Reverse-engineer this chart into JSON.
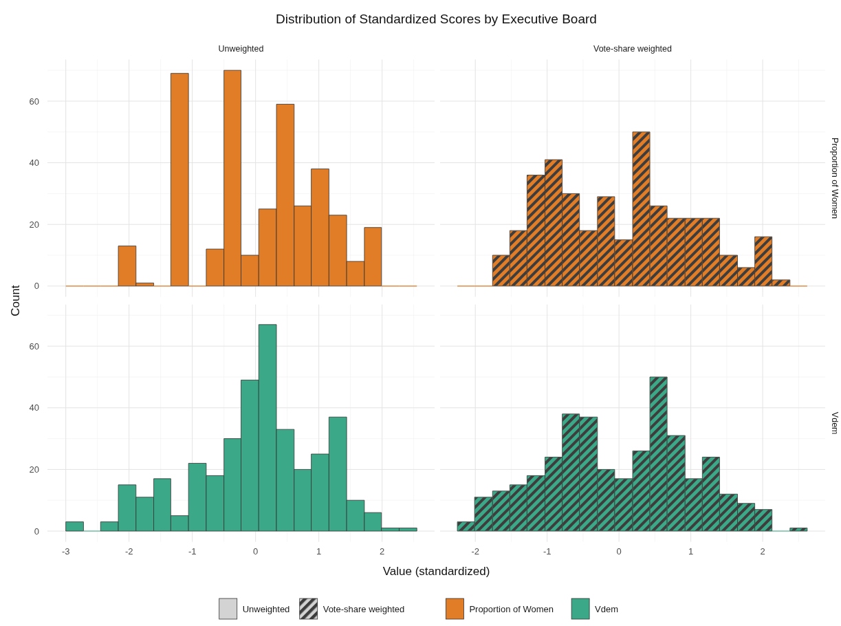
{
  "chart_data": [
    {
      "type": "histogram",
      "title": "Distribution of Standardized Scores by Executive Board",
      "subtitle": "Unweighted",
      "ylabel": "Count",
      "bins": [
        -3.0,
        -2.72,
        -2.45,
        -2.17,
        -1.89,
        -1.61,
        -1.34,
        -1.06,
        -0.78,
        -0.5,
        -0.23,
        0.05,
        0.33,
        0.61,
        0.88,
        1.16,
        1.44,
        1.72,
        1.99,
        2.27,
        2.55
      ],
      "series": [
        {
          "name": "Proportion of Women",
          "color": "#e17c27",
          "values": [
            0,
            0,
            0,
            13,
            1,
            0,
            69,
            0,
            12,
            70,
            10,
            25,
            59,
            26,
            38,
            23,
            8,
            19,
            0,
            0
          ]
        }
      ],
      "xlim": [
        -3.29,
        2.83
      ],
      "xticks": [
        -3,
        -2,
        -1,
        0,
        1,
        2
      ],
      "ylim": [
        -3.5,
        73.5
      ],
      "yticks": [
        0,
        20,
        40,
        60
      ],
      "grid": true,
      "legend": "bottom",
      "tick_labels": "y"
    },
    {
      "type": "histogram",
      "subtitle": "Vote-share weighted",
      "y2label": "Proportion of Women",
      "bins": [
        -2.25,
        -2.01,
        -1.76,
        -1.52,
        -1.28,
        -1.03,
        -0.79,
        -0.55,
        -0.3,
        -0.06,
        0.19,
        0.43,
        0.67,
        0.92,
        1.16,
        1.4,
        1.65,
        1.89,
        2.13,
        2.38,
        2.62
      ],
      "series": [
        {
          "color": "#e17c27",
          "values": [
            0,
            0,
            10,
            18,
            36,
            41,
            30,
            18,
            29,
            15,
            50,
            26,
            22,
            22,
            22,
            10,
            6,
            16,
            2,
            0
          ]
        }
      ],
      "xlim": [
        -2.49,
        2.87
      ],
      "xticks": [
        -2,
        -1,
        0,
        1,
        2
      ],
      "ylim": [
        -3.5,
        73.5
      ],
      "yticks": [
        0,
        20,
        40,
        60
      ],
      "grid": true,
      "tick_labels": false
    },
    {
      "type": "histogram",
      "xlabel": "Value (standardized)",
      "bins": [
        -3.0,
        -2.72,
        -2.45,
        -2.17,
        -1.89,
        -1.61,
        -1.34,
        -1.06,
        -0.78,
        -0.5,
        -0.23,
        0.05,
        0.33,
        0.61,
        0.88,
        1.16,
        1.44,
        1.72,
        1.99,
        2.27,
        2.55
      ],
      "series": [
        {
          "name": "Vdem",
          "color": "#3ba988",
          "values": [
            3,
            0,
            3,
            15,
            11,
            17,
            5,
            22,
            18,
            30,
            49,
            67,
            33,
            20,
            25,
            37,
            10,
            6,
            1,
            1
          ]
        }
      ],
      "xlim": [
        -3.29,
        2.83
      ],
      "xticks": [
        -3,
        -2,
        -1,
        0,
        1,
        2
      ],
      "ylim": [
        -3.5,
        73.5
      ],
      "yticks": [
        0,
        20,
        40,
        60
      ],
      "grid": true,
      "legend": "bottom"
    },
    {
      "type": "histogram",
      "y2label": "Vdem",
      "bins": [
        -2.25,
        -2.01,
        -1.76,
        -1.52,
        -1.28,
        -1.03,
        -0.79,
        -0.55,
        -0.3,
        -0.06,
        0.19,
        0.43,
        0.67,
        0.92,
        1.16,
        1.4,
        1.65,
        1.89,
        2.13,
        2.38,
        2.62
      ],
      "series": [
        {
          "color": "#3ba988",
          "values": [
            3,
            11,
            13,
            15,
            18,
            24,
            38,
            37,
            20,
            17,
            26,
            50,
            31,
            17,
            24,
            12,
            9,
            7,
            0,
            1
          ]
        }
      ],
      "xlim": [
        -2.49,
        2.87
      ],
      "xticks": [
        -2,
        -1,
        0,
        1,
        2
      ],
      "ylim": [
        -3.5,
        73.5
      ],
      "yticks": [
        0,
        20,
        40,
        60
      ],
      "grid": true,
      "tick_labels": "x"
    }
  ]
}
